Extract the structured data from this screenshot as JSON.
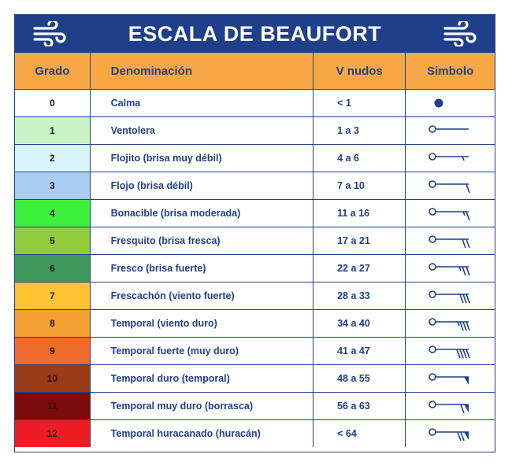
{
  "title": "ESCALA DE BEAUFORT",
  "header": {
    "grado": "Grado",
    "denominacion": "Denominación",
    "nudos": "V nudos",
    "simbolo": "Simbolo"
  },
  "icons": {
    "title_left": "wind-icon",
    "title_right": "wind-icon"
  },
  "colors": {
    "navy": "#1f3f8a",
    "header_orange": "#f7a844"
  },
  "rows": [
    {
      "grado": "0",
      "denominacion": "Calma",
      "nudos": "< 1",
      "color": "#ffffff",
      "symbol": "calm-dot-icon"
    },
    {
      "grado": "1",
      "denominacion": "Ventolera",
      "nudos": "1 a 3",
      "color": "#c8f5c8",
      "symbol": "wind-barb-0-icon"
    },
    {
      "grado": "2",
      "denominacion": "Flojito (brisa muy débil)",
      "nudos": "4 a 6",
      "color": "#d9f6fb",
      "symbol": "wind-barb-halfbarb-icon"
    },
    {
      "grado": "3",
      "denominacion": "Flojo (brisa débil)",
      "nudos": "7 a 10",
      "color": "#a9cdf3",
      "symbol": "wind-barb-1-icon"
    },
    {
      "grado": "4",
      "denominacion": "Bonacible (brisa moderada)",
      "nudos": "11 a 16",
      "color": "#3cf03c",
      "symbol": "wind-barb-1half-icon"
    },
    {
      "grado": "5",
      "denominacion": "Fresquito (brisa fresca)",
      "nudos": "17 a 21",
      "color": "#92cc3c",
      "symbol": "wind-barb-2-icon"
    },
    {
      "grado": "6",
      "denominacion": "Fresco (brisa fuerte)",
      "nudos": "22 a 27",
      "color": "#3f9a5e",
      "symbol": "wind-barb-2half-icon"
    },
    {
      "grado": "7",
      "denominacion": "Frescachón (viento fuerte)",
      "nudos": "28 a 33",
      "color": "#fcc430",
      "symbol": "wind-barb-3-icon"
    },
    {
      "grado": "8",
      "denominacion": "Temporal (viento duro)",
      "nudos": "34 a 40",
      "color": "#f5a033",
      "symbol": "wind-barb-3half-icon"
    },
    {
      "grado": "9",
      "denominacion": "Temporal fuerte (muy duro)",
      "nudos": "41 a 47",
      "color": "#f06a2c",
      "symbol": "wind-barb-4-icon"
    },
    {
      "grado": "10",
      "denominacion": "Temporal duro (temporal)",
      "nudos": "48 a 55",
      "color": "#9a3b1a",
      "symbol": "wind-barb-pennant-icon"
    },
    {
      "grado": "11",
      "denominacion": "Temporal muy duro (borrasca)",
      "nudos": "56 a 63",
      "color": "#7c0b0b",
      "symbol": "wind-barb-pennant-barb-icon"
    },
    {
      "grado": "12",
      "denominacion": "Temporal huracanado (huracán)",
      "nudos": "< 64",
      "color": "#ee1c24",
      "symbol": "wind-barb-pennant-2barb-icon"
    }
  ]
}
